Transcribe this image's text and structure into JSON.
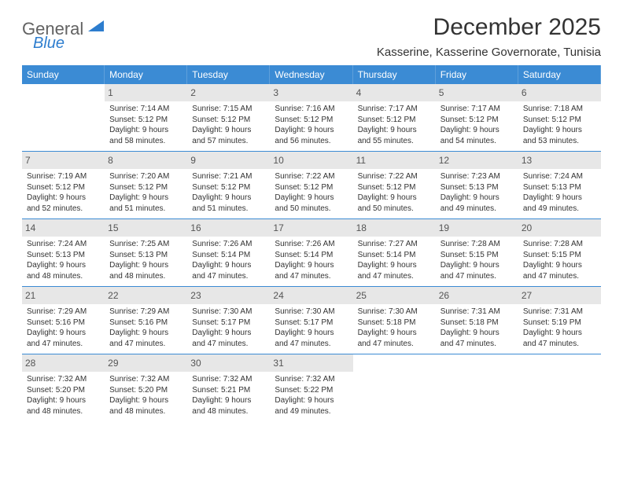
{
  "logo": {
    "text1": "General",
    "text2": "Blue"
  },
  "title": "December 2025",
  "subtitle": "Kasserine, Kasserine Governorate, Tunisia",
  "colors": {
    "header_bg": "#3b8bd4",
    "header_text": "#ffffff",
    "daynum_bg": "#e7e7e7",
    "cell_border": "#3b8bd4",
    "logo_blue": "#2d7dce"
  },
  "day_headers": [
    "Sunday",
    "Monday",
    "Tuesday",
    "Wednesday",
    "Thursday",
    "Friday",
    "Saturday"
  ],
  "weeks": [
    [
      {
        "n": "",
        "sr": "",
        "ss": "",
        "dl": ""
      },
      {
        "n": "1",
        "sr": "7:14 AM",
        "ss": "5:12 PM",
        "dl": "9 hours and 58 minutes."
      },
      {
        "n": "2",
        "sr": "7:15 AM",
        "ss": "5:12 PM",
        "dl": "9 hours and 57 minutes."
      },
      {
        "n": "3",
        "sr": "7:16 AM",
        "ss": "5:12 PM",
        "dl": "9 hours and 56 minutes."
      },
      {
        "n": "4",
        "sr": "7:17 AM",
        "ss": "5:12 PM",
        "dl": "9 hours and 55 minutes."
      },
      {
        "n": "5",
        "sr": "7:17 AM",
        "ss": "5:12 PM",
        "dl": "9 hours and 54 minutes."
      },
      {
        "n": "6",
        "sr": "7:18 AM",
        "ss": "5:12 PM",
        "dl": "9 hours and 53 minutes."
      }
    ],
    [
      {
        "n": "7",
        "sr": "7:19 AM",
        "ss": "5:12 PM",
        "dl": "9 hours and 52 minutes."
      },
      {
        "n": "8",
        "sr": "7:20 AM",
        "ss": "5:12 PM",
        "dl": "9 hours and 51 minutes."
      },
      {
        "n": "9",
        "sr": "7:21 AM",
        "ss": "5:12 PM",
        "dl": "9 hours and 51 minutes."
      },
      {
        "n": "10",
        "sr": "7:22 AM",
        "ss": "5:12 PM",
        "dl": "9 hours and 50 minutes."
      },
      {
        "n": "11",
        "sr": "7:22 AM",
        "ss": "5:12 PM",
        "dl": "9 hours and 50 minutes."
      },
      {
        "n": "12",
        "sr": "7:23 AM",
        "ss": "5:13 PM",
        "dl": "9 hours and 49 minutes."
      },
      {
        "n": "13",
        "sr": "7:24 AM",
        "ss": "5:13 PM",
        "dl": "9 hours and 49 minutes."
      }
    ],
    [
      {
        "n": "14",
        "sr": "7:24 AM",
        "ss": "5:13 PM",
        "dl": "9 hours and 48 minutes."
      },
      {
        "n": "15",
        "sr": "7:25 AM",
        "ss": "5:13 PM",
        "dl": "9 hours and 48 minutes."
      },
      {
        "n": "16",
        "sr": "7:26 AM",
        "ss": "5:14 PM",
        "dl": "9 hours and 47 minutes."
      },
      {
        "n": "17",
        "sr": "7:26 AM",
        "ss": "5:14 PM",
        "dl": "9 hours and 47 minutes."
      },
      {
        "n": "18",
        "sr": "7:27 AM",
        "ss": "5:14 PM",
        "dl": "9 hours and 47 minutes."
      },
      {
        "n": "19",
        "sr": "7:28 AM",
        "ss": "5:15 PM",
        "dl": "9 hours and 47 minutes."
      },
      {
        "n": "20",
        "sr": "7:28 AM",
        "ss": "5:15 PM",
        "dl": "9 hours and 47 minutes."
      }
    ],
    [
      {
        "n": "21",
        "sr": "7:29 AM",
        "ss": "5:16 PM",
        "dl": "9 hours and 47 minutes."
      },
      {
        "n": "22",
        "sr": "7:29 AM",
        "ss": "5:16 PM",
        "dl": "9 hours and 47 minutes."
      },
      {
        "n": "23",
        "sr": "7:30 AM",
        "ss": "5:17 PM",
        "dl": "9 hours and 47 minutes."
      },
      {
        "n": "24",
        "sr": "7:30 AM",
        "ss": "5:17 PM",
        "dl": "9 hours and 47 minutes."
      },
      {
        "n": "25",
        "sr": "7:30 AM",
        "ss": "5:18 PM",
        "dl": "9 hours and 47 minutes."
      },
      {
        "n": "26",
        "sr": "7:31 AM",
        "ss": "5:18 PM",
        "dl": "9 hours and 47 minutes."
      },
      {
        "n": "27",
        "sr": "7:31 AM",
        "ss": "5:19 PM",
        "dl": "9 hours and 47 minutes."
      }
    ],
    [
      {
        "n": "28",
        "sr": "7:32 AM",
        "ss": "5:20 PM",
        "dl": "9 hours and 48 minutes."
      },
      {
        "n": "29",
        "sr": "7:32 AM",
        "ss": "5:20 PM",
        "dl": "9 hours and 48 minutes."
      },
      {
        "n": "30",
        "sr": "7:32 AM",
        "ss": "5:21 PM",
        "dl": "9 hours and 48 minutes."
      },
      {
        "n": "31",
        "sr": "7:32 AM",
        "ss": "5:22 PM",
        "dl": "9 hours and 49 minutes."
      },
      {
        "n": "",
        "sr": "",
        "ss": "",
        "dl": ""
      },
      {
        "n": "",
        "sr": "",
        "ss": "",
        "dl": ""
      },
      {
        "n": "",
        "sr": "",
        "ss": "",
        "dl": ""
      }
    ]
  ],
  "labels": {
    "sunrise": "Sunrise:",
    "sunset": "Sunset:",
    "daylight": "Daylight:"
  }
}
